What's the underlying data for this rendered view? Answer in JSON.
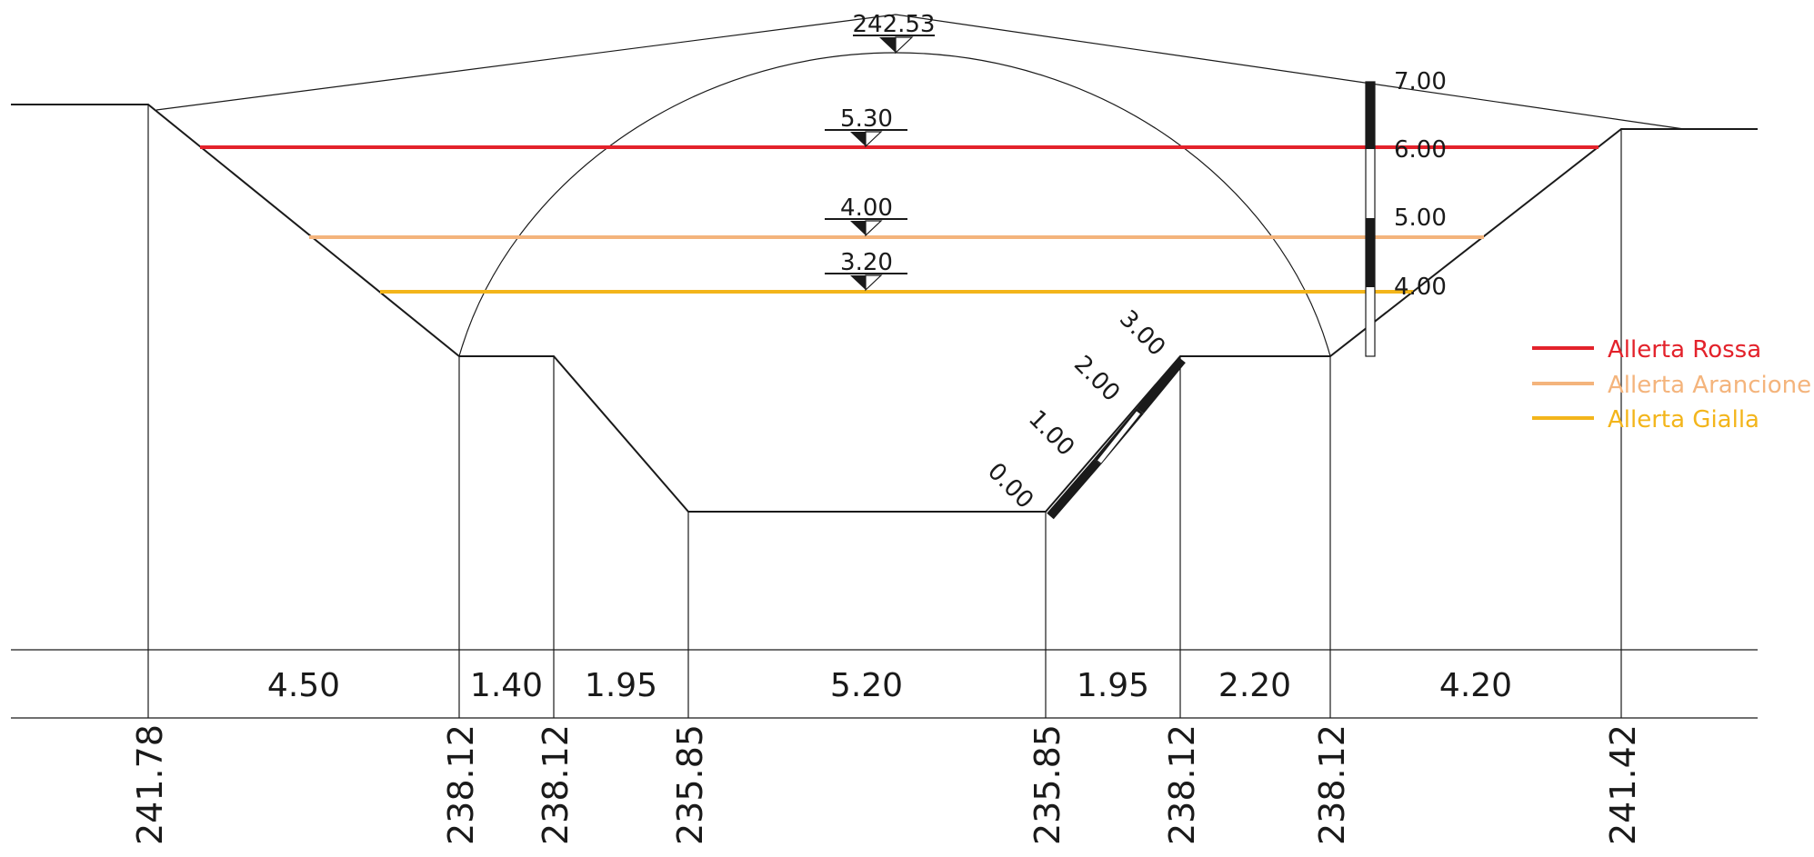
{
  "crown": {
    "elevation_label": "242.53"
  },
  "water_levels": [
    {
      "key": "red",
      "value_label": "5.30",
      "color": "#e3222b"
    },
    {
      "key": "orange",
      "value_label": "4.00",
      "color": "#f4b47c"
    },
    {
      "key": "yellow",
      "value_label": "3.20",
      "color": "#f3b51b"
    }
  ],
  "vertical_gauge": {
    "labels": [
      "7.00",
      "6.00",
      "5.00",
      "4.00"
    ]
  },
  "inclined_gauge": {
    "labels": [
      "3.00",
      "2.00",
      "1.00",
      "0.00"
    ]
  },
  "legend": [
    {
      "label": "Allerta Rossa",
      "color": "#e3222b"
    },
    {
      "label": "Allerta Arancione",
      "color": "#f4b47c"
    },
    {
      "label": "Allerta Gialla",
      "color": "#f3b51b"
    }
  ],
  "widths": [
    "4.50",
    "1.40",
    "1.95",
    "5.20",
    "1.95",
    "2.20",
    "4.20"
  ],
  "elevations": [
    "241.78",
    "238.12",
    "238.12",
    "235.85",
    "235.85",
    "238.12",
    "238.12",
    "241.42"
  ]
}
